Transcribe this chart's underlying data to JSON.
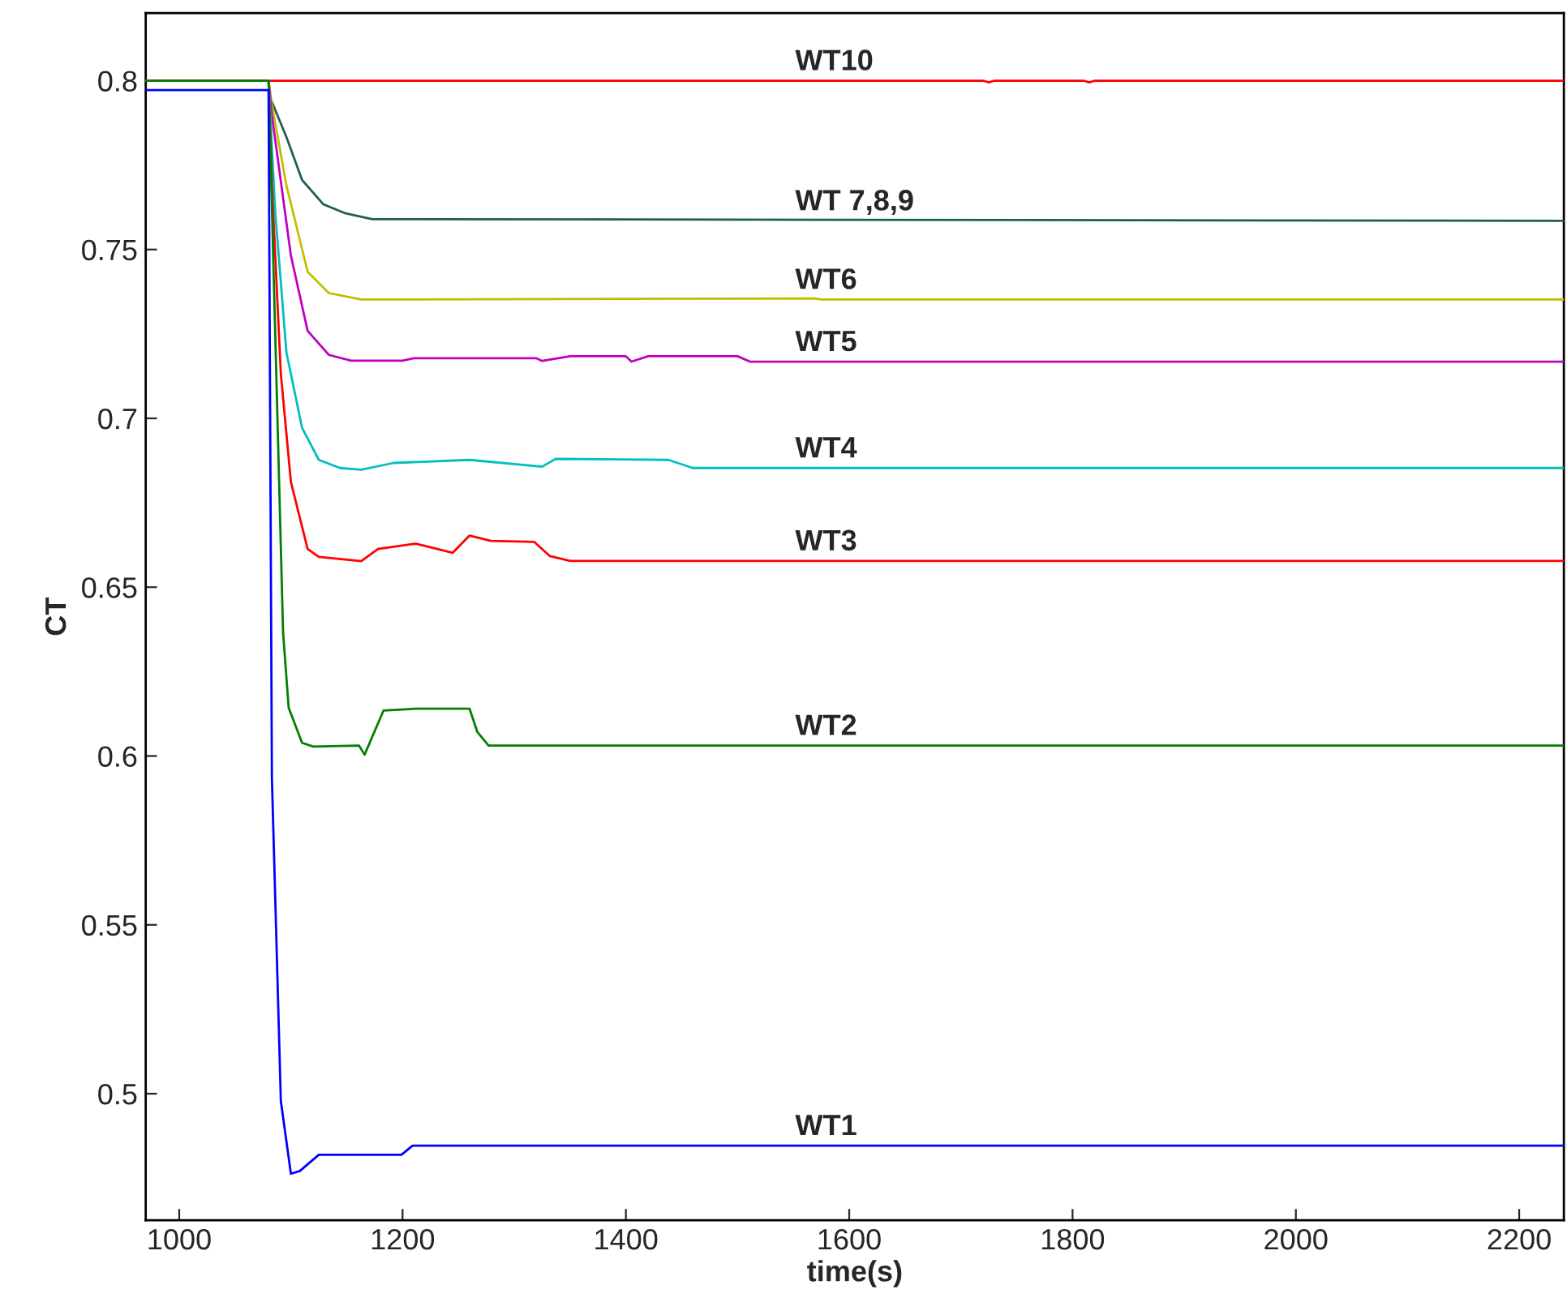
{
  "chart_data": {
    "type": "line",
    "xlabel": "time(s)",
    "ylabel": "CT",
    "xlim": [
      970,
      2240
    ],
    "ylim": [
      0.4625,
      0.82
    ],
    "xticks": [
      1000,
      1200,
      1400,
      1600,
      1800,
      2000,
      2200
    ],
    "yticks": [
      0.5,
      0.55,
      0.6,
      0.65,
      0.7,
      0.75,
      0.8
    ],
    "grid": false,
    "legend": false,
    "marker": "none",
    "line_style": "solid",
    "series": [
      {
        "name": "WT10",
        "color": "#ff0000",
        "x": [
          970,
          1080,
          1720,
          1725,
          1730,
          1810,
          1815,
          1820,
          2240
        ],
        "values": [
          0.8,
          0.8,
          0.8,
          0.7995,
          0.8,
          0.8,
          0.7995,
          0.8,
          0.8
        ]
      },
      {
        "name": "WT 7,8,9",
        "color": "#1f5f50",
        "x": [
          970,
          1080,
          1081,
          1096,
          1110,
          1129,
          1149,
          1173,
          2240
        ],
        "values": [
          0.8,
          0.8,
          0.7953,
          0.7833,
          0.7706,
          0.7634,
          0.7607,
          0.759,
          0.7585
        ]
      },
      {
        "name": "WT6",
        "color": "#bfbf00",
        "x": [
          970,
          1080,
          1083,
          1096,
          1115,
          1134,
          1163,
          1569,
          1575,
          2240
        ],
        "values": [
          0.8,
          0.8,
          0.793,
          0.769,
          0.7434,
          0.7371,
          0.7352,
          0.7355,
          0.7352,
          0.7352
        ]
      },
      {
        "name": "WT5",
        "color": "#bf00bf",
        "x": [
          970,
          1080,
          1083,
          1100,
          1115,
          1134,
          1154,
          1200,
          1210,
          1320,
          1325,
          1350,
          1400,
          1405,
          1420,
          1500,
          1511,
          2240
        ],
        "values": [
          0.8,
          0.8,
          0.7897,
          0.7482,
          0.7259,
          0.7188,
          0.7171,
          0.7171,
          0.7178,
          0.7178,
          0.717,
          0.7184,
          0.7184,
          0.7168,
          0.7184,
          0.7184,
          0.7168,
          0.7168
        ]
      },
      {
        "name": "WT4",
        "color": "#00bfbf",
        "x": [
          970,
          1080,
          1086,
          1096,
          1110,
          1125,
          1144,
          1163,
          1192,
          1260,
          1325,
          1337,
          1438,
          1460,
          2240
        ],
        "values": [
          0.8,
          0.8,
          0.761,
          0.7195,
          0.6972,
          0.6877,
          0.6853,
          0.6848,
          0.6868,
          0.6877,
          0.6857,
          0.688,
          0.6877,
          0.6853,
          0.6853
        ]
      },
      {
        "name": "WT3",
        "color": "#ff0000",
        "x": [
          970,
          1080,
          1083,
          1091,
          1100,
          1115,
          1125,
          1163,
          1178,
          1212,
          1245,
          1260,
          1279,
          1318,
          1332,
          1350,
          2240
        ],
        "values": [
          0.8,
          0.8,
          0.769,
          0.7132,
          0.6812,
          0.6613,
          0.659,
          0.6577,
          0.6613,
          0.6629,
          0.6602,
          0.6653,
          0.6637,
          0.6634,
          0.6592,
          0.6578,
          0.6578
        ]
      },
      {
        "name": "WT2",
        "color": "#008000",
        "x": [
          970,
          1080,
          1093,
          1098,
          1110,
          1120,
          1161,
          1166,
          1183,
          1212,
          1260,
          1267,
          1277,
          2240
        ],
        "values": [
          0.8,
          0.8,
          0.6366,
          0.6143,
          0.6039,
          0.6028,
          0.6031,
          0.6004,
          0.6135,
          0.614,
          0.614,
          0.6071,
          0.6031,
          0.6031
        ]
      },
      {
        "name": "WT1",
        "color": "#0000ff",
        "x": [
          970,
          1080,
          1083,
          1087,
          1091,
          1100,
          1108,
          1125,
          1199,
          1209,
          2240
        ],
        "values": [
          0.7972,
          0.7972,
          0.5935,
          0.5457,
          0.4978,
          0.4763,
          0.4771,
          0.4819,
          0.4819,
          0.4846,
          0.4846
        ]
      }
    ]
  }
}
